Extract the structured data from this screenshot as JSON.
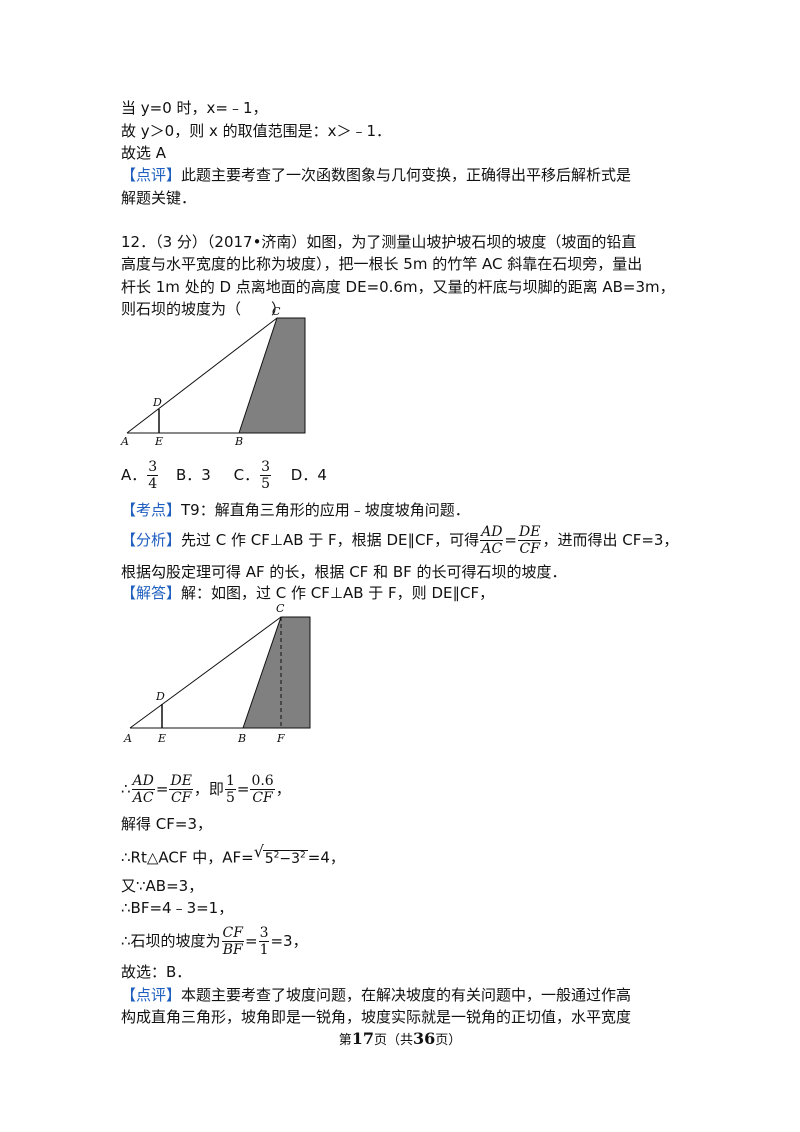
{
  "lines": {
    "l1": "当 y=0 时，x=﹣1，",
    "l2": "故 y＞0，则 x 的取值范围是：x＞﹣1．",
    "l3": "故选 A",
    "l4_tag": "【点评】",
    "l4": "此题主要考查了一次函数图象与几何变换，正确得出平移后解析式是",
    "l5": "解题关键．"
  },
  "question": {
    "l1": "12．（3 分）（2017•济南）如图，为了测量山坡护坡石坝的坡度（坡面的铅直",
    "l2": "高度与水平宽度的比称为坡度），把一根长 5m 的竹竿 AC 斜靠在石坝旁，量出",
    "l3": "杆长 1m 处的 D 点离地面的高度 DE=0.6m，又量的杆底与坝脚的距离 AB=3m，",
    "l4": "则石坝的坡度为（　　）"
  },
  "figure1": {
    "A": "A",
    "E": "E",
    "B": "B",
    "D": "D",
    "C": "C"
  },
  "options": {
    "a_label": "A．",
    "a_num": "3",
    "a_den": "4",
    "b": "B．3",
    "c_label": "C．",
    "c_num": "3",
    "c_den": "5",
    "d": "D．4"
  },
  "kaodian": {
    "tag": "【考点】",
    "text": "T9：解直角三角形的应用﹣坡度坡角问题．"
  },
  "fenxi": {
    "tag": "【分析】",
    "t1": "先过 C 作 CF⊥AB 于 F，根据 DE∥CF，可得",
    "f1n": "AD",
    "f1d": "AC",
    "eq": "=",
    "f2n": "DE",
    "f2d": "CF",
    "t2": "，进而得出 CF=3，",
    "l2": "根据勾股定理可得 AF 的长，根据 CF 和 BF 的长可得石坝的坡度．"
  },
  "jieda": {
    "tag": "【解答】",
    "text": "解：如图，过 C 作 CF⊥AB 于 F，则 DE∥CF，"
  },
  "figure2": {
    "A": "A",
    "E": "E",
    "B": "B",
    "F": "F",
    "D": "D",
    "C": "C"
  },
  "solution": {
    "therefore": "∴",
    "s1_f1n": "AD",
    "s1_f1d": "AC",
    "s1_eq": "=",
    "s1_f2n": "DE",
    "s1_f2d": "CF",
    "s1_mid": "，即",
    "s1_f3n": "1",
    "s1_f3d": "5",
    "s1_f4n": "0.6",
    "s1_f4d": "CF",
    "s1_end": "，",
    "s2": "解得 CF=3，",
    "s3_a": "∴Rt△ACF 中，AF=",
    "s3_rad": "5",
    "s3_minus": "−3",
    "s3_exp": "2",
    "s3_end": "=4，",
    "s4": "又∵AB=3，",
    "s5": "∴BF=4﹣3=1，",
    "s6_a": "∴石坝的坡度为",
    "s6_f1n": "CF",
    "s6_f1d": "BF",
    "s6_f2n": "3",
    "s6_f2d": "1",
    "s6_end": "=3，",
    "s7": "故选：B．"
  },
  "dianping": {
    "tag": "【点评】",
    "l1": "本题主要考查了坡度问题，在解决坡度的有关问题中，一般通过作高",
    "l2": "构成直角三角形，坡角即是一锐角，坡度实际就是一锐角的正切值，水平宽度"
  },
  "footer": {
    "prefix": "第",
    "page": "17",
    "mid": "页（共",
    "total": "36",
    "suffix": "页）"
  }
}
